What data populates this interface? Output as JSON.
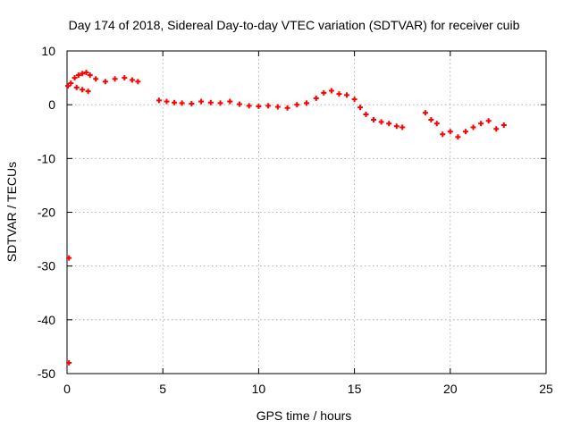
{
  "chart_data": {
    "type": "scatter",
    "title": "Day 174 of 2018, Sidereal Day-to-day VTEC variation (SDTVAR) for receiver cuib",
    "xlabel": "GPS time / hours",
    "ylabel": "SDTVAR / TECUs",
    "xlim": [
      0,
      25
    ],
    "ylim": [
      -50,
      10
    ],
    "xticks": [
      0,
      5,
      10,
      15,
      20,
      25
    ],
    "yticks": [
      10,
      0,
      -10,
      -20,
      -30,
      -40,
      -50
    ],
    "grid": true,
    "marker_color": "#ff0000",
    "series": [
      {
        "name": "SDTVAR",
        "x": [
          0.05,
          0.2,
          0.4,
          0.6,
          0.8,
          1.0,
          1.2,
          0.5,
          0.8,
          1.1,
          1.5,
          2.0,
          2.5,
          3.0,
          3.4,
          3.7,
          4.8,
          5.2,
          5.6,
          6.0,
          6.5,
          7.0,
          7.5,
          8.0,
          8.5,
          9.0,
          9.5,
          10.0,
          10.5,
          11.0,
          11.5,
          12.0,
          12.5,
          13.0,
          13.4,
          13.8,
          14.2,
          14.6,
          15.0,
          15.3,
          15.6,
          16.0,
          16.4,
          16.8,
          17.2,
          17.5,
          18.7,
          19.0,
          19.3,
          19.6,
          20.0,
          20.4,
          20.8,
          21.2,
          21.6,
          22.0,
          22.4,
          22.8,
          0.1,
          0.1
        ],
        "y": [
          3.5,
          4.0,
          5.0,
          5.5,
          5.8,
          6.0,
          5.5,
          3.2,
          2.8,
          2.5,
          4.8,
          4.3,
          4.8,
          5.0,
          4.6,
          4.3,
          0.8,
          0.6,
          0.4,
          0.3,
          0.2,
          0.6,
          0.4,
          0.3,
          0.6,
          0.1,
          -0.2,
          -0.3,
          -0.2,
          -0.4,
          -0.6,
          0.0,
          0.3,
          1.2,
          2.2,
          2.6,
          2.0,
          1.8,
          1.0,
          -0.5,
          -1.8,
          -2.8,
          -3.2,
          -3.5,
          -4.0,
          -4.2,
          -1.5,
          -2.8,
          -3.5,
          -5.5,
          -5.0,
          -6.0,
          -5.0,
          -4.2,
          -3.5,
          -3.0,
          -4.5,
          -3.8,
          -28.5,
          -48.0
        ]
      }
    ]
  }
}
